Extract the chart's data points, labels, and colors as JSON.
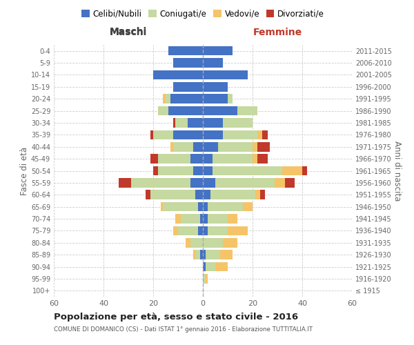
{
  "age_groups": [
    "100+",
    "95-99",
    "90-94",
    "85-89",
    "80-84",
    "75-79",
    "70-74",
    "65-69",
    "60-64",
    "55-59",
    "50-54",
    "45-49",
    "40-44",
    "35-39",
    "30-34",
    "25-29",
    "20-24",
    "15-19",
    "10-14",
    "5-9",
    "0-4"
  ],
  "birth_years": [
    "≤ 1915",
    "1916-1920",
    "1921-1925",
    "1926-1930",
    "1931-1935",
    "1936-1940",
    "1941-1945",
    "1946-1950",
    "1951-1955",
    "1956-1960",
    "1961-1965",
    "1966-1970",
    "1971-1975",
    "1976-1980",
    "1981-1985",
    "1986-1990",
    "1991-1995",
    "1996-2000",
    "2001-2005",
    "2006-2010",
    "2011-2015"
  ],
  "maschi_celibi": [
    0,
    0,
    0,
    1,
    0,
    2,
    1,
    2,
    3,
    5,
    4,
    5,
    4,
    12,
    6,
    14,
    13,
    12,
    20,
    12,
    14
  ],
  "maschi_coniugati": [
    0,
    0,
    0,
    2,
    5,
    8,
    8,
    14,
    18,
    24,
    14,
    13,
    8,
    8,
    5,
    4,
    2,
    0,
    0,
    0,
    0
  ],
  "maschi_vedovi": [
    0,
    0,
    0,
    1,
    2,
    2,
    2,
    1,
    0,
    0,
    0,
    0,
    1,
    0,
    0,
    0,
    1,
    0,
    0,
    0,
    0
  ],
  "maschi_divorziati": [
    0,
    0,
    0,
    0,
    0,
    0,
    0,
    0,
    2,
    5,
    2,
    3,
    0,
    1,
    1,
    0,
    0,
    0,
    0,
    0,
    0
  ],
  "femmine_celibi": [
    0,
    0,
    1,
    1,
    0,
    2,
    2,
    2,
    3,
    5,
    4,
    4,
    6,
    8,
    8,
    14,
    10,
    10,
    18,
    8,
    12
  ],
  "femmine_coniugati": [
    0,
    1,
    4,
    6,
    8,
    8,
    8,
    14,
    18,
    24,
    28,
    16,
    14,
    14,
    12,
    8,
    2,
    0,
    0,
    0,
    0
  ],
  "femmine_vedovi": [
    0,
    1,
    5,
    5,
    6,
    8,
    4,
    4,
    2,
    4,
    8,
    2,
    2,
    2,
    0,
    0,
    0,
    0,
    0,
    0,
    0
  ],
  "femmine_divorziati": [
    0,
    0,
    0,
    0,
    0,
    0,
    0,
    0,
    2,
    4,
    2,
    4,
    5,
    2,
    0,
    0,
    0,
    0,
    0,
    0,
    0
  ],
  "color_celibi": "#4472c4",
  "color_coniugati": "#c5d9a0",
  "color_vedovi": "#f5c469",
  "color_divorziati": "#c0392b",
  "title": "Popolazione per età, sesso e stato civile - 2016",
  "subtitle": "COMUNE DI DOMANICO (CS) - Dati ISTAT 1° gennaio 2016 - Elaborazione TUTTITALIA.IT",
  "xlabel_left": "Maschi",
  "xlabel_right": "Femmine",
  "ylabel_left": "Fasce di età",
  "ylabel_right": "Anni di nascita",
  "xlim": 60,
  "background_color": "#ffffff",
  "grid_color": "#cccccc",
  "maschi_label_color": "#444444",
  "femmine_label_color": "#c0392b"
}
